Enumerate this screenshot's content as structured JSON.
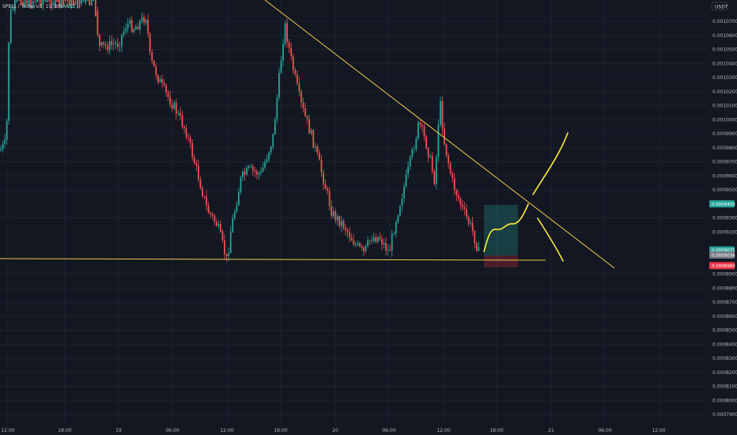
{
  "header": {
    "title": "SPELL / TetherUS, 15, BINANCE"
  },
  "currency_button": "USDT",
  "chart_data": {
    "type": "candlestick",
    "title": "SPELL / TetherUS, 15, BINANCE",
    "y_ticks": [
      "0.0010700",
      "0.0010600",
      "0.0010500",
      "0.0010400",
      "0.0010300",
      "0.0010200",
      "0.0010100",
      "0.0010000",
      "0.0009900",
      "0.0009800",
      "0.0009700",
      "0.0009600",
      "0.0009500",
      "0.0009300",
      "0.0009200",
      "0.0008900",
      "0.0008800",
      "0.0008700",
      "0.0008600",
      "0.0008500",
      "0.0008400",
      "0.0008300",
      "0.0008200",
      "0.0008100",
      "0.0008000",
      "0.0007900"
    ],
    "x_ticks": [
      "12:00",
      "18:00",
      "19",
      "06:00",
      "12:00",
      "18:00",
      "20",
      "06:00",
      "12:00",
      "18:00",
      "21",
      "06:00",
      "12:00"
    ],
    "price_tags": [
      {
        "label": "0.0009400",
        "value": 0.00094,
        "color": "#26a69a"
      },
      {
        "label": "0.0009071",
        "value": 0.0009071,
        "color": "#26a69a"
      },
      {
        "label": "0.0009036",
        "value": 0.0009036,
        "color": "#787b86"
      },
      {
        "label": "0.0008960",
        "value": 0.000896,
        "color": "#f23645"
      }
    ],
    "colors": {
      "up": "#26a69a",
      "down": "#ef5350",
      "trendline": "#f0c94a",
      "sketch": "#ffeb3b",
      "long_zone": "#26a69a",
      "stop_zone": "#f23645"
    }
  }
}
